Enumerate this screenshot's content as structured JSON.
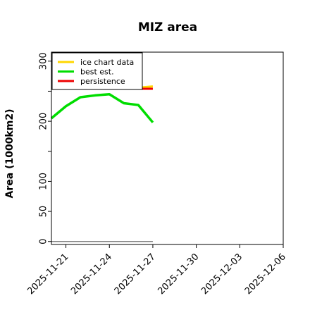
{
  "chart_data": {
    "type": "line",
    "title": "MIZ area",
    "xlabel": "",
    "ylabel": "Area (1000km2)",
    "x_ticks": [
      "2025-11-21",
      "2025-11-24",
      "2025-11-27",
      "2025-11-30",
      "2025-12-03",
      "2025-12-06"
    ],
    "xlim": [
      "2025-11-20",
      "2025-12-06"
    ],
    "y_ticks": [
      "0",
      "50",
      "100",
      "200",
      "300"
    ],
    "ylim": [
      -5,
      315
    ],
    "legend_position": "top-left",
    "grid": false,
    "baseline": {
      "x": [
        "2025-11-20",
        "2025-11-27"
      ],
      "y": [
        0,
        0
      ],
      "color": "#808080"
    },
    "series": [
      {
        "name": "ice chart data",
        "color": "#FFD700",
        "x": [
          "2025-11-26",
          "2025-11-27"
        ],
        "y": [
          256,
          258
        ]
      },
      {
        "name": "best est.",
        "color": "#00DD00",
        "x": [
          "2025-11-20",
          "2025-11-21",
          "2025-11-22",
          "2025-11-23",
          "2025-11-24",
          "2025-11-25",
          "2025-11-26",
          "2025-11-27"
        ],
        "y": [
          205,
          225,
          240,
          243,
          245,
          230,
          227,
          198
        ]
      },
      {
        "name": "persistence",
        "color": "#EE0000",
        "x": [
          "2025-11-25",
          "2025-11-26",
          "2025-11-27"
        ],
        "y": [
          254,
          254,
          254
        ]
      }
    ]
  }
}
